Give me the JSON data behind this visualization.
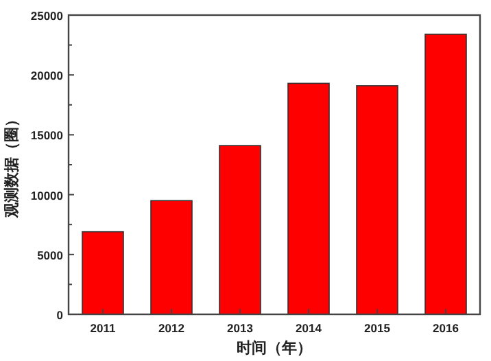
{
  "chart_data": {
    "type": "bar",
    "xlabel": "时间（年）",
    "ylabel": "观测数据（圈）",
    "categories": [
      "2011",
      "2012",
      "2013",
      "2014",
      "2015",
      "2016"
    ],
    "values": [
      6900,
      9500,
      14100,
      19300,
      19100,
      23400
    ],
    "color": "#ff0000",
    "ylim": [
      0,
      25000
    ],
    "yticks": [
      0,
      {
        "value": 2500,
        "label": null
      },
      5000,
      {
        "value": 7500,
        "label": null
      },
      10000,
      {
        "value": 12500,
        "label": null
      },
      15000,
      {
        "value": 17500,
        "label": null
      },
      20000,
      {
        "value": 22500,
        "label": null
      },
      25000
    ],
    "grid": false
  }
}
